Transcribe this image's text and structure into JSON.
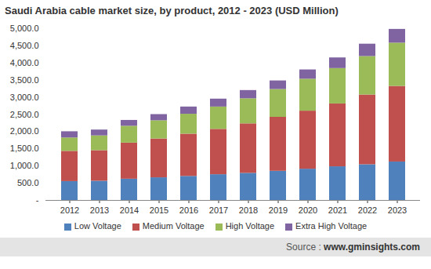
{
  "chart_data": {
    "type": "bar",
    "stacked": true,
    "title": "Saudi Arabia cable market size, by product, 2012 - 2023 (USD Million)",
    "caption": "Source : www.gminsights.com",
    "categories": [
      "2012",
      "2013",
      "2014",
      "2015",
      "2016",
      "2017",
      "2018",
      "2019",
      "2020",
      "2021",
      "2022",
      "2023"
    ],
    "series": [
      {
        "name": "Low Voltage",
        "color": "#4f81bd",
        "values": [
          550,
          560,
          620,
          660,
          700,
          750,
          790,
          850,
          910,
          980,
          1040,
          1120
        ]
      },
      {
        "name": "Medium Voltage",
        "color": "#c0504d",
        "values": [
          880,
          890,
          1050,
          1130,
          1230,
          1320,
          1440,
          1570,
          1690,
          1830,
          2030,
          2200
        ]
      },
      {
        "name": "High Voltage",
        "color": "#9bbb59",
        "values": [
          390,
          430,
          490,
          530,
          580,
          650,
          730,
          810,
          930,
          1030,
          1120,
          1260
        ]
      },
      {
        "name": "Extra High Voltage",
        "color": "#8064a2",
        "values": [
          180,
          170,
          170,
          180,
          210,
          230,
          240,
          250,
          270,
          310,
          360,
          400
        ]
      }
    ],
    "ylim": [
      0,
      5000
    ],
    "yticks": [
      {
        "value": 0,
        "label": "-"
      },
      {
        "value": 500,
        "label": "500.0"
      },
      {
        "value": 1000,
        "label": "1,000.0"
      },
      {
        "value": 1500,
        "label": "1,500.0"
      },
      {
        "value": 2000,
        "label": "2,000.0"
      },
      {
        "value": 2500,
        "label": "2,500.0"
      },
      {
        "value": 3000,
        "label": "3,000.0"
      },
      {
        "value": 3500,
        "label": "3,500.0"
      },
      {
        "value": 4000,
        "label": "4,000.0"
      },
      {
        "value": 4500,
        "label": "4,500.0"
      },
      {
        "value": 5000,
        "label": "5,000.0"
      }
    ],
    "grid": false,
    "legend": "bottom"
  }
}
